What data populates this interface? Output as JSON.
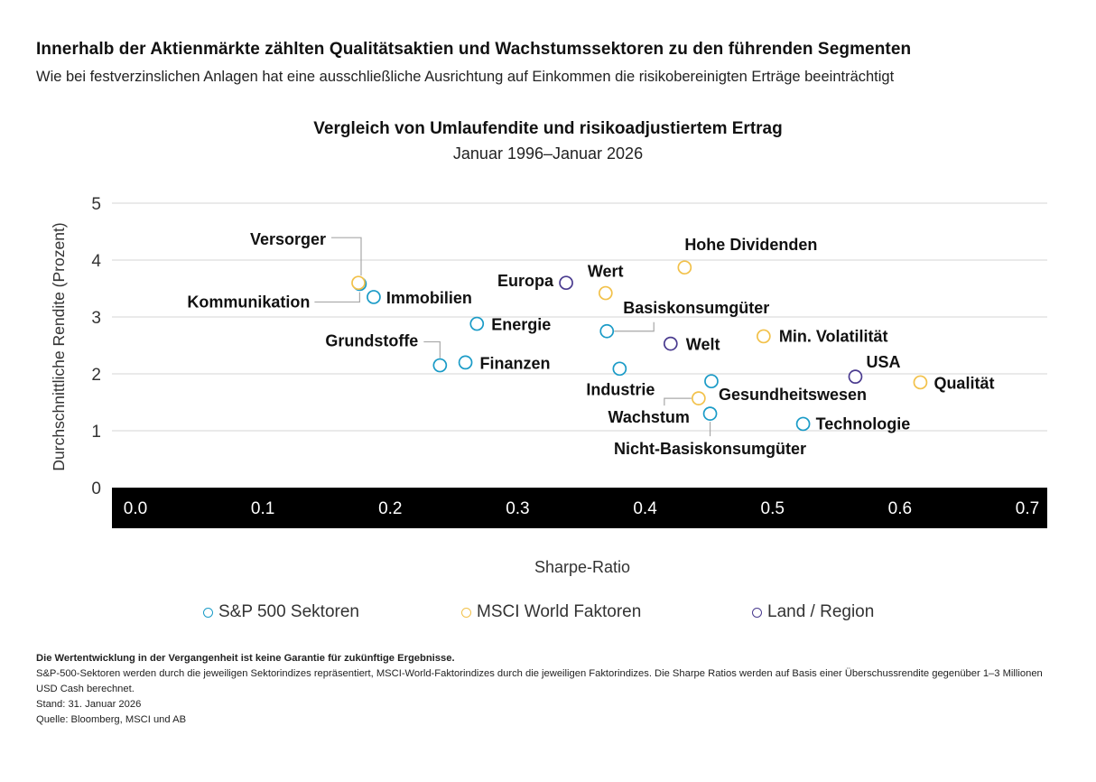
{
  "header": {
    "headline": "Innerhalb der Aktienmärkte zählten Qualitätsaktien und Wachstumssektoren zu den führenden Segmenten",
    "subhead": "Wie bei festverzinslichen Anlagen hat eine ausschließliche Ausrichtung auf Einkommen die risikobereinigten Erträge beeinträchtigt"
  },
  "chart_data": {
    "type": "scatter",
    "title": "Vergleich von Umlaufendite und risikoadjustiertem Ertrag",
    "subtitle": "Januar 1996–Januar 2026",
    "xlabel": "Sharpe-Ratio",
    "ylabel": "Durchschnittliche Rendite (Prozent)",
    "xlim": [
      0,
      0.7
    ],
    "ylim": [
      0,
      5
    ],
    "xticks": [
      "0.0",
      "0.1",
      "0.2",
      "0.3",
      "0.4",
      "0.5",
      "0.6",
      "0.7"
    ],
    "yticks": [
      "0",
      "1",
      "2",
      "3",
      "4",
      "5"
    ],
    "grid": true,
    "series": [
      {
        "name": "S&P 500 Sektoren",
        "color": "#1a9bc7",
        "points": [
          {
            "label": "Kommunikation",
            "x": 0.176,
            "y": 3.58
          },
          {
            "label": "Immobilien",
            "x": 0.187,
            "y": 3.35
          },
          {
            "label": "Energie",
            "x": 0.268,
            "y": 2.88
          },
          {
            "label": "Grundstoffe",
            "x": 0.239,
            "y": 2.15
          },
          {
            "label": "Finanzen",
            "x": 0.259,
            "y": 2.2
          },
          {
            "label": "Basiskonsumgüter",
            "x": 0.37,
            "y": 2.75
          },
          {
            "label": "Industrie",
            "x": 0.38,
            "y": 2.09
          },
          {
            "label": "Gesundheitswesen",
            "x": 0.452,
            "y": 1.87
          },
          {
            "label": "Nicht-Basiskonsumgüter",
            "x": 0.451,
            "y": 1.3
          },
          {
            "label": "Technologie",
            "x": 0.524,
            "y": 1.12
          }
        ]
      },
      {
        "name": "MSCI World Faktoren",
        "color": "#f2c14a",
        "points": [
          {
            "label": "Versorger",
            "x": 0.175,
            "y": 3.6
          },
          {
            "label": "Hohe Dividenden",
            "x": 0.431,
            "y": 3.87
          },
          {
            "label": "Wert",
            "x": 0.369,
            "y": 3.42
          },
          {
            "label": "Min. Volatilität",
            "x": 0.493,
            "y": 2.66
          },
          {
            "label": "Wachstum",
            "x": 0.442,
            "y": 1.57
          },
          {
            "label": "Qualität",
            "x": 0.616,
            "y": 1.85
          }
        ]
      },
      {
        "name": "Land / Region",
        "color": "#4a3b8f",
        "points": [
          {
            "label": "Europa",
            "x": 0.338,
            "y": 3.6
          },
          {
            "label": "Welt",
            "x": 0.42,
            "y": 2.53
          },
          {
            "label": "USA",
            "x": 0.565,
            "y": 1.95
          }
        ]
      }
    ]
  },
  "footer": {
    "disclaimer": "Die Wertentwicklung in der Vergangenheit ist keine Garantie für zukünftige Ergebnisse.",
    "note": "S&P-500-Sektoren werden durch die jeweiligen Sektorindizes repräsentiert, MSCI-World-Faktorindizes durch die jeweiligen Faktorindizes. Die Sharpe Ratios werden auf Basis einer Überschussrendite gegenüber 1–3 Millionen USD Cash berechnet.",
    "date": "Stand: 31. Januar 2026",
    "source": "Quelle: Bloomberg, MSCI und AB"
  }
}
